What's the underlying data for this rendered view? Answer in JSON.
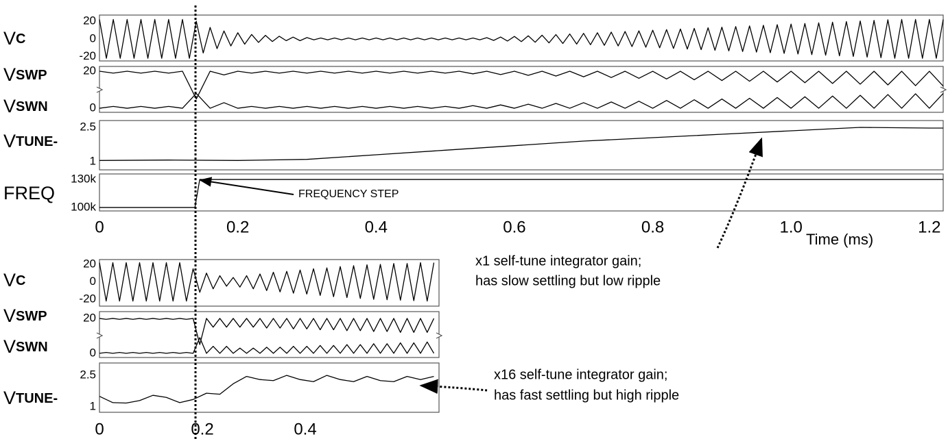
{
  "chart_data": [
    {
      "type": "line",
      "label": [
        "V",
        "C"
      ],
      "xlim": [
        0,
        1.22
      ],
      "ylim": [
        -25,
        27
      ],
      "yticks": [
        -20,
        0,
        20
      ],
      "x": [
        0,
        0.01,
        0.02,
        0.03,
        0.04,
        0.05,
        0.06,
        0.07,
        0.08,
        0.09,
        0.1,
        0.11,
        0.12,
        0.13,
        0.14,
        0.15,
        0.16,
        0.17,
        0.18,
        0.19,
        0.2,
        0.21,
        0.22,
        0.23,
        0.24,
        0.25,
        0.26,
        0.27,
        0.28,
        0.29,
        0.3,
        0.31,
        0.32,
        0.33,
        0.34,
        0.35,
        0.36,
        0.37,
        0.38,
        0.39,
        0.4,
        0.41,
        0.42,
        0.43,
        0.44,
        0.45,
        0.46,
        0.47,
        0.48,
        0.49,
        0.5,
        0.51,
        0.52,
        0.53,
        0.54,
        0.55,
        0.56,
        0.57,
        0.58,
        0.59,
        0.6,
        0.61,
        0.62,
        0.63,
        0.64,
        0.65,
        0.66,
        0.67,
        0.68,
        0.69,
        0.7,
        0.71,
        0.72,
        0.73,
        0.74,
        0.75,
        0.76,
        0.77,
        0.78,
        0.79,
        0.8,
        0.81,
        0.82,
        0.83,
        0.84,
        0.85,
        0.86,
        0.87,
        0.88,
        0.89,
        0.9,
        0.91,
        0.92,
        0.93,
        0.94,
        0.95,
        0.96,
        0.97,
        0.98,
        0.99,
        1,
        1.01,
        1.02,
        1.03,
        1.04,
        1.05,
        1.06,
        1.07,
        1.08,
        1.09,
        1.1,
        1.11,
        1.12,
        1.13,
        1.14,
        1.15,
        1.16,
        1.17,
        1.18,
        1.19,
        1.2,
        1.21,
        1.22
      ],
      "series": [
        {
          "color": "#000000",
          "values": [
            22,
            -22,
            22,
            -22,
            22,
            -22,
            22,
            -22,
            22,
            -22,
            22,
            -22,
            22,
            -22,
            20,
            -16,
            13,
            -11,
            9,
            -8,
            7,
            -6,
            5,
            -4,
            4,
            -3,
            3,
            -2,
            2,
            -2,
            1.5,
            -1,
            1,
            -1,
            1,
            -1,
            1,
            -1,
            1,
            -1,
            1,
            -1,
            1,
            -1,
            1,
            -1,
            1,
            -1,
            1,
            -1,
            1,
            -1,
            1,
            -1,
            1,
            -1,
            1.4,
            -1.7,
            2.1,
            -2.4,
            2.8,
            -3.1,
            3.5,
            -3.8,
            4.2,
            -4.5,
            4.9,
            -5.2,
            5.6,
            -5.9,
            6.3,
            -6.6,
            7,
            -7.3,
            7.7,
            -8,
            8.4,
            -8.7,
            9.1,
            -9.4,
            9.8,
            -10.1,
            10.5,
            -10.8,
            11.2,
            -11.5,
            11.9,
            -12.2,
            12.6,
            -12.9,
            13.3,
            -13.6,
            14,
            -14.3,
            14.7,
            -15,
            15.4,
            -15.7,
            16.1,
            -16.4,
            16.8,
            -17.1,
            17.5,
            -17.8,
            18.2,
            -18.5,
            18.9,
            -19.2,
            19.6,
            -19.9,
            20.3,
            -20.6,
            21,
            -21.3,
            21.7,
            -22,
            22,
            -22,
            22,
            -22,
            22,
            -22,
            22
          ]
        }
      ]
    },
    {
      "type": "line",
      "label": [
        "V",
        "SWP"
      ],
      "label2": [
        "V",
        "SWN"
      ],
      "xlim": [
        0,
        1.22
      ],
      "ylim": [
        -2.2,
        22.6
      ],
      "yticks": [
        0,
        20
      ],
      "x": [
        0,
        0.02,
        0.04,
        0.06,
        0.08,
        0.1,
        0.12,
        0.14,
        0.16,
        0.18,
        0.2,
        0.22,
        0.24,
        0.26,
        0.28,
        0.3,
        0.32,
        0.34,
        0.36,
        0.38,
        0.4,
        0.42,
        0.44,
        0.46,
        0.48,
        0.5,
        0.52,
        0.54,
        0.56,
        0.58,
        0.6,
        0.62,
        0.64,
        0.66,
        0.68,
        0.7,
        0.72,
        0.74,
        0.76,
        0.78,
        0.8,
        0.82,
        0.84,
        0.86,
        0.88,
        0.9,
        0.92,
        0.94,
        0.96,
        0.98,
        1,
        1.02,
        1.04,
        1.06,
        1.08,
        1.1,
        1.12,
        1.14,
        1.16,
        1.18,
        1.2,
        1.22
      ],
      "series": [
        {
          "color": "#000000",
          "values": [
            20,
            19,
            20,
            19,
            20,
            19,
            20,
            5,
            20,
            18,
            20,
            19,
            20,
            19,
            20,
            19,
            20,
            19,
            20,
            19,
            20,
            19,
            20,
            19,
            20,
            19,
            20,
            18.6,
            20,
            18.2,
            20,
            17.8,
            20,
            17.4,
            20,
            17,
            20,
            16.6,
            20,
            16.2,
            20,
            15.8,
            20,
            15.4,
            20,
            15,
            20,
            14.6,
            20,
            14.2,
            20,
            13.8,
            20,
            13.4,
            20,
            13,
            20,
            12.6,
            20,
            12.2,
            20,
            12
          ]
        },
        {
          "color": "#000000",
          "values": [
            0,
            1,
            0,
            1,
            0,
            1,
            0,
            8,
            0,
            3,
            0,
            1,
            0,
            1,
            0,
            1,
            0,
            1,
            0,
            1,
            0,
            1,
            0,
            1,
            0,
            1,
            0,
            1.4,
            0,
            1.8,
            0,
            2.2,
            0,
            2.6,
            0,
            3,
            0,
            3.4,
            0,
            3.8,
            0,
            4.2,
            0,
            4.6,
            0,
            5,
            0,
            5.4,
            0,
            5.8,
            0,
            6.2,
            0,
            6.6,
            0,
            7,
            0,
            7.4,
            0,
            7.8,
            0,
            8
          ]
        }
      ]
    },
    {
      "type": "line",
      "label": [
        "V",
        "TUNE-"
      ],
      "xlim": [
        0,
        1.22
      ],
      "ylim": [
        0.64,
        2.8
      ],
      "yticks": [
        1,
        2.5
      ],
      "x": [
        0,
        0.1,
        0.2,
        0.3,
        0.4,
        0.5,
        0.6,
        0.7,
        0.8,
        0.9,
        1,
        1.1,
        1.2,
        1.22
      ],
      "series": [
        {
          "color": "#000000",
          "values": [
            1.05,
            1.07,
            1.05,
            1.1,
            1.3,
            1.5,
            1.7,
            1.9,
            2.05,
            2.2,
            2.35,
            2.5,
            2.47,
            2.47
          ]
        }
      ]
    },
    {
      "type": "line",
      "label": [
        "FREQ",
        ""
      ],
      "xlim": [
        0,
        1.22
      ],
      "ylim": [
        96300,
        135900
      ],
      "yticks": [
        {
          "value": 100000,
          "label": "100k"
        },
        {
          "value": 130000,
          "label": "130k"
        }
      ],
      "xticks": [
        0,
        0.2,
        0.4,
        0.6,
        0.8,
        {
          "value": 1,
          "label": "1.0"
        },
        1.2
      ],
      "x": [
        0,
        0.138,
        0.145,
        1.22
      ],
      "series": [
        {
          "color": "#000000",
          "values": [
            100000,
            100000,
            130000,
            130000
          ]
        }
      ]
    },
    {
      "type": "line",
      "label": [
        "V",
        "C"
      ],
      "xlim": [
        0,
        0.66
      ],
      "ylim": [
        -27.8,
        25.5
      ],
      "yticks": [
        -20,
        0,
        20
      ],
      "x": [
        0,
        0.013,
        0.026,
        0.039,
        0.052,
        0.065,
        0.078,
        0.091,
        0.104,
        0.117,
        0.13,
        0.143,
        0.156,
        0.169,
        0.182,
        0.195,
        0.208,
        0.221,
        0.234,
        0.247,
        0.26,
        0.273,
        0.286,
        0.299,
        0.312,
        0.325,
        0.338,
        0.351,
        0.364,
        0.377,
        0.39,
        0.403,
        0.416,
        0.429,
        0.442,
        0.455,
        0.468,
        0.481,
        0.494,
        0.507,
        0.52,
        0.533,
        0.546,
        0.559,
        0.572,
        0.585,
        0.598,
        0.611,
        0.624,
        0.637,
        0.65
      ],
      "series": [
        {
          "color": "#000000",
          "values": [
            22,
            -22,
            22,
            -22,
            22,
            -22,
            22,
            -22,
            22,
            -22,
            22,
            -22,
            22,
            -22,
            15,
            -12,
            10,
            -8,
            7,
            -5,
            5,
            -6,
            7,
            -8,
            9,
            -10,
            11,
            -11.5,
            12,
            -13,
            13.5,
            -14,
            15,
            -15.5,
            16,
            -17,
            17.5,
            -18,
            18.5,
            -19,
            19.5,
            -20,
            20,
            -20.5,
            21,
            -21,
            21,
            -21.5,
            22,
            -22,
            22
          ]
        }
      ]
    },
    {
      "type": "line",
      "label": [
        "V",
        "SWP"
      ],
      "label2": [
        "V",
        "SWN"
      ],
      "xlim": [
        0,
        0.66
      ],
      "ylim": [
        -2.4,
        23.9
      ],
      "yticks": [
        0,
        20
      ],
      "x": [
        0,
        0.013,
        0.026,
        0.039,
        0.052,
        0.065,
        0.078,
        0.091,
        0.104,
        0.117,
        0.13,
        0.143,
        0.156,
        0.169,
        0.182,
        0.195,
        0.208,
        0.221,
        0.234,
        0.247,
        0.26,
        0.273,
        0.286,
        0.299,
        0.312,
        0.325,
        0.338,
        0.351,
        0.364,
        0.377,
        0.39,
        0.403,
        0.416,
        0.429,
        0.442,
        0.455,
        0.468,
        0.481,
        0.494,
        0.507,
        0.52,
        0.533,
        0.546,
        0.559,
        0.572,
        0.585,
        0.598,
        0.611,
        0.624,
        0.637,
        0.65
      ],
      "series": [
        {
          "color": "#000000",
          "values": [
            20,
            19.5,
            20,
            19.5,
            20,
            19.5,
            20,
            19.5,
            20,
            19.5,
            20,
            19.5,
            20,
            19.5,
            20,
            5,
            20,
            15,
            20,
            15,
            20,
            15,
            20,
            15,
            20,
            14.5,
            20,
            14.5,
            20,
            14,
            20,
            14,
            20,
            13.5,
            20,
            13.5,
            20,
            13,
            20,
            13,
            20,
            12.5,
            20,
            12.5,
            20,
            12,
            20,
            12,
            20,
            12,
            20
          ]
        },
        {
          "color": "#000000",
          "values": [
            0,
            0.5,
            0,
            0.5,
            0,
            0.5,
            0,
            0.5,
            0,
            0.5,
            0,
            0.5,
            0,
            0.5,
            0,
            9,
            0,
            4,
            0,
            4,
            0,
            3,
            0,
            3,
            0,
            3.5,
            0,
            3.5,
            0,
            4,
            0,
            4,
            0,
            4.5,
            0,
            4.5,
            0,
            5,
            0,
            5,
            0,
            5.5,
            0,
            5.5,
            0,
            6,
            0,
            6,
            0,
            6.5,
            0
          ]
        }
      ]
    },
    {
      "type": "line",
      "label": [
        "V",
        "TUNE-"
      ],
      "xlim": [
        0,
        0.66
      ],
      "ylim": [
        0.74,
        3.09
      ],
      "yticks": [
        1,
        2.5
      ],
      "xticks": [
        0,
        0.2,
        0.4
      ],
      "x": [
        0,
        0.026,
        0.052,
        0.078,
        0.104,
        0.13,
        0.156,
        0.182,
        0.208,
        0.234,
        0.26,
        0.286,
        0.312,
        0.338,
        0.364,
        0.39,
        0.416,
        0.442,
        0.468,
        0.494,
        0.52,
        0.546,
        0.572,
        0.598,
        0.624,
        0.65
      ],
      "series": [
        {
          "color": "#000000",
          "values": [
            1.5,
            1.2,
            1.18,
            1.3,
            1.55,
            1.45,
            1.2,
            1.35,
            1.65,
            1.6,
            2.1,
            2.45,
            2.3,
            2.25,
            2.5,
            2.3,
            2.2,
            2.5,
            2.3,
            2.2,
            2.45,
            2.25,
            2.2,
            2.45,
            2.3,
            2.45
          ]
        }
      ]
    }
  ],
  "annotations": {
    "step": "FREQUENCY STEP",
    "time_label": "Time (ms)",
    "slow": [
      "x1 self-tune integrator gain;",
      "has slow settling but low ripple"
    ],
    "fast": [
      "x16 self-tune integrator gain;",
      "has fast settling but high ripple"
    ]
  }
}
